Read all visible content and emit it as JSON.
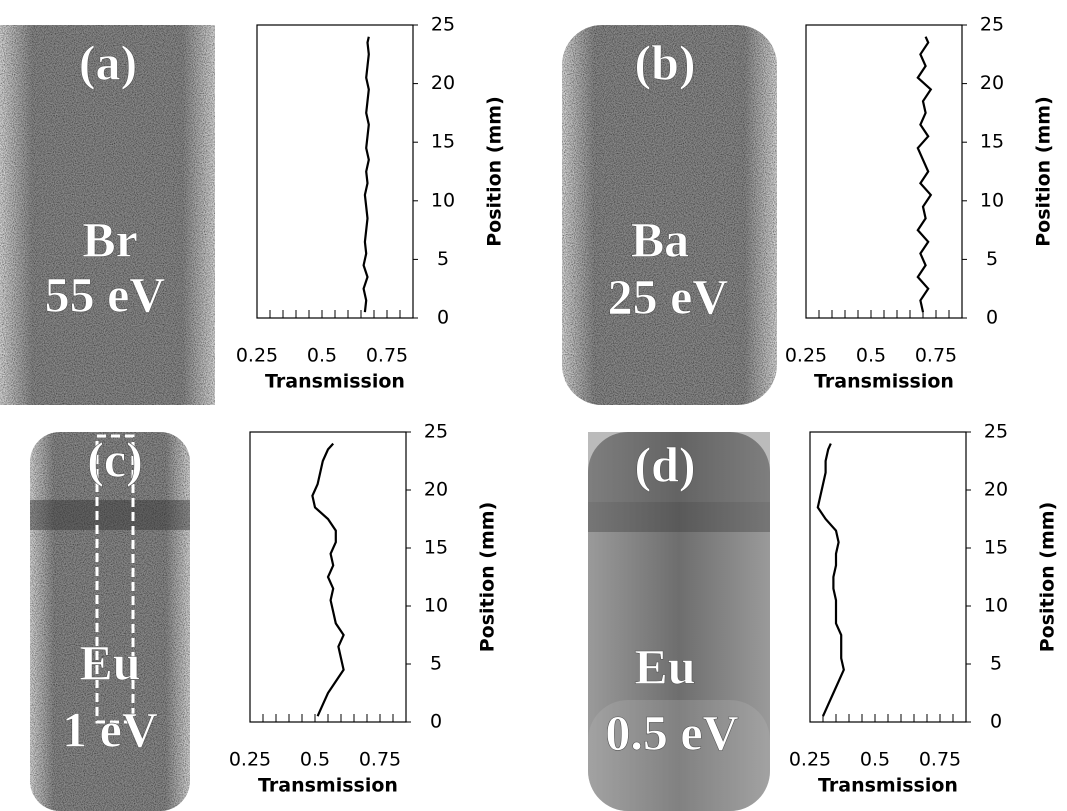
{
  "chart_data": [
    {
      "type": "line",
      "annotations": [
        "(a)",
        "Br",
        "55 eV"
      ],
      "xlabel": "Transmission",
      "ylabel": "Position (mm)",
      "color": "#000000",
      "xlim": [
        0.25,
        0.85
      ],
      "xticks": [
        0.25,
        0.5,
        0.75
      ],
      "xminorticks": [
        0.3,
        0.35,
        0.4,
        0.45,
        0.55,
        0.6,
        0.65,
        0.7,
        0.8
      ],
      "ylim": [
        0,
        25
      ],
      "yticks": [
        0,
        5,
        10,
        15,
        20,
        25
      ],
      "x": [
        0.665,
        0.67,
        0.66,
        0.675,
        0.66,
        0.67,
        0.665,
        0.67,
        0.675,
        0.67,
        0.665,
        0.675,
        0.67,
        0.68,
        0.67,
        0.675,
        0.68,
        0.67,
        0.675,
        0.68,
        0.67,
        0.675,
        0.68,
        0.675,
        0.68
      ],
      "y": [
        0.5,
        1.5,
        2.5,
        3.5,
        4.5,
        5.5,
        6.5,
        7.5,
        8.5,
        9.5,
        10.5,
        11.5,
        12.5,
        13.5,
        14.5,
        15.5,
        16.5,
        17.5,
        18.5,
        19.5,
        20.5,
        21.5,
        22.5,
        23.5,
        24
      ]
    },
    {
      "type": "line",
      "annotations": [
        "(b)",
        "Ba",
        "25 eV"
      ],
      "xlabel": "Transmission",
      "ylabel": "Position (mm)",
      "color": "#000000",
      "xlim": [
        0.25,
        0.85
      ],
      "xticks": [
        0.25,
        0.5,
        0.75
      ],
      "xminorticks": [
        0.3,
        0.35,
        0.4,
        0.45,
        0.55,
        0.6,
        0.65,
        0.7,
        0.8
      ],
      "ylim": [
        0,
        25
      ],
      "yticks": [
        0,
        5,
        10,
        15,
        20,
        25
      ],
      "x": [
        0.7,
        0.69,
        0.72,
        0.68,
        0.71,
        0.69,
        0.72,
        0.68,
        0.71,
        0.7,
        0.73,
        0.69,
        0.72,
        0.7,
        0.68,
        0.72,
        0.69,
        0.71,
        0.7,
        0.73,
        0.68,
        0.71,
        0.69,
        0.72,
        0.71
      ],
      "y": [
        0.5,
        1.5,
        2.5,
        3.5,
        4.5,
        5.5,
        6.5,
        7.5,
        8.5,
        9.5,
        10.5,
        11.5,
        12.5,
        13.5,
        14.5,
        15.5,
        16.5,
        17.5,
        18.5,
        19.5,
        20.5,
        21.5,
        22.5,
        23.5,
        24
      ]
    },
    {
      "type": "line",
      "annotations": [
        "(c)",
        "Eu",
        "1 eV"
      ],
      "xlabel": "Transmission",
      "ylabel": "Position (mm)",
      "color": "#000000",
      "xlim": [
        0.25,
        0.85
      ],
      "xticks": [
        0.25,
        0.5,
        0.75
      ],
      "xminorticks": [
        0.3,
        0.35,
        0.4,
        0.45,
        0.55,
        0.6,
        0.65,
        0.7,
        0.8
      ],
      "ylim": [
        0,
        25
      ],
      "yticks": [
        0,
        5,
        10,
        15,
        20,
        25
      ],
      "x": [
        0.51,
        0.53,
        0.55,
        0.58,
        0.61,
        0.6,
        0.59,
        0.61,
        0.58,
        0.57,
        0.56,
        0.57,
        0.55,
        0.57,
        0.56,
        0.58,
        0.58,
        0.55,
        0.5,
        0.49,
        0.51,
        0.52,
        0.53,
        0.55,
        0.57
      ],
      "y": [
        0.5,
        1.5,
        2.5,
        3.5,
        4.5,
        5.5,
        6.5,
        7.5,
        8.5,
        9.5,
        10.5,
        11.5,
        12.5,
        13.5,
        14.5,
        15.5,
        16.5,
        17.5,
        18.5,
        19.5,
        20.5,
        21.5,
        22.5,
        23.5,
        24
      ]
    },
    {
      "type": "line",
      "annotations": [
        "(d)",
        "Eu",
        "0.5 eV"
      ],
      "xlabel": "Transmission",
      "ylabel": "Position (mm)",
      "color": "#000000",
      "xlim": [
        0.25,
        0.85
      ],
      "xticks": [
        0.25,
        0.5,
        0.75
      ],
      "xminorticks": [
        0.3,
        0.35,
        0.4,
        0.45,
        0.55,
        0.6,
        0.65,
        0.7,
        0.8
      ],
      "ylim": [
        0,
        25
      ],
      "yticks": [
        0,
        5,
        10,
        15,
        20,
        25
      ],
      "x": [
        0.3,
        0.32,
        0.34,
        0.36,
        0.38,
        0.37,
        0.37,
        0.37,
        0.35,
        0.35,
        0.35,
        0.34,
        0.34,
        0.35,
        0.35,
        0.36,
        0.35,
        0.31,
        0.28,
        0.29,
        0.3,
        0.31,
        0.31,
        0.32,
        0.33
      ],
      "y": [
        0.5,
        1.5,
        2.5,
        3.5,
        4.5,
        5.5,
        6.5,
        7.5,
        8.5,
        9.5,
        10.5,
        11.5,
        12.5,
        13.5,
        14.5,
        15.5,
        16.5,
        17.5,
        18.5,
        19.5,
        20.5,
        21.5,
        22.5,
        23.5,
        24
      ]
    }
  ]
}
